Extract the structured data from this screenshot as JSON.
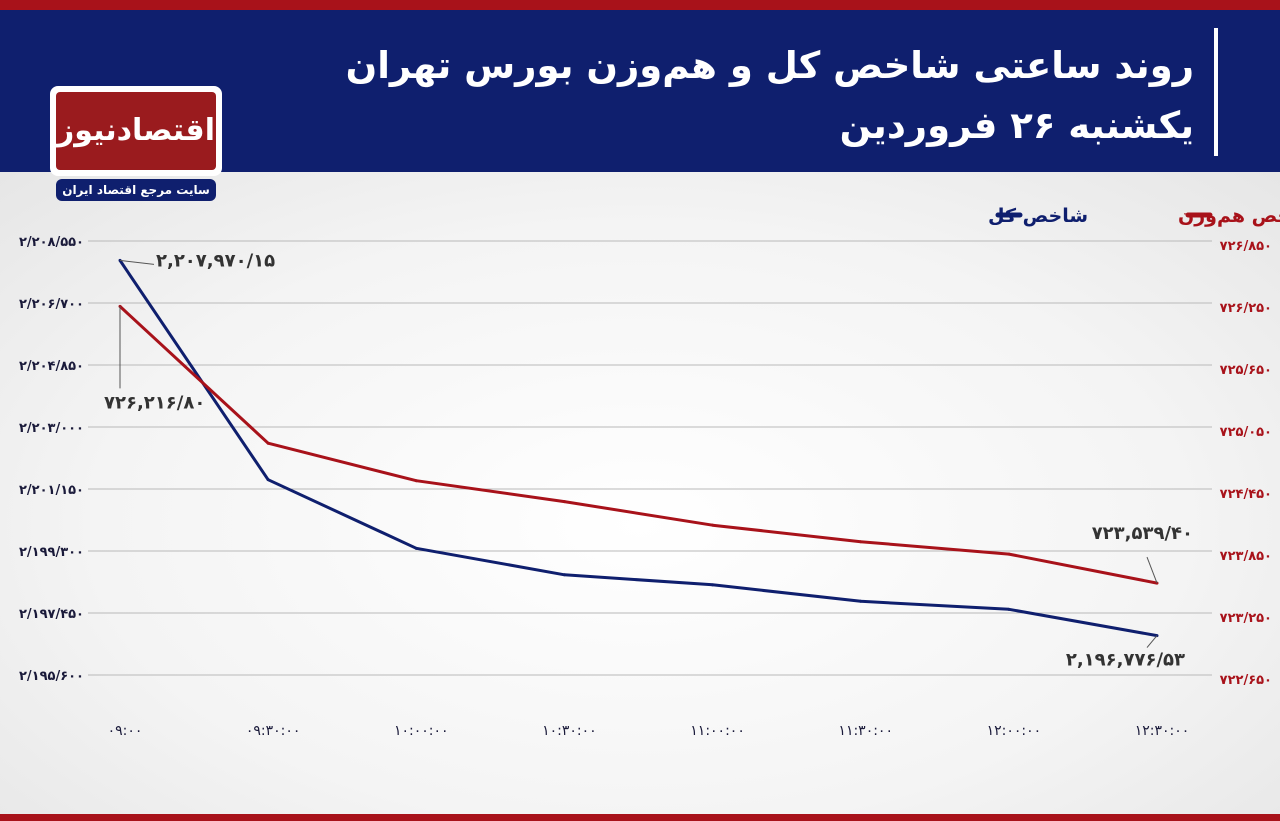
{
  "header": {
    "title": "روند ساعتی شاخص کل و هم‌وزن بورس تهران",
    "subtitle": "یکشنبه ۲۶ فروردین"
  },
  "logo": {
    "name": "اقتصادنیوز",
    "tagline": "سایت مرجع اقتصاد ایران"
  },
  "colors": {
    "header_bg": "#0f1f6e",
    "accent_red": "#a8121a",
    "total_series": "#0f1f6e",
    "equal_series": "#a8121a"
  },
  "chart_data": {
    "type": "line",
    "title": "روند ساعتی شاخص کل و هم‌وزن بورس تهران",
    "subtitle": "یکشنبه ۲۶ فروردین",
    "x": [
      "۰۹:۰۰",
      "۰۹:۳۰:۰۰",
      "۱۰:۰۰:۰۰",
      "۱۰:۳۰:۰۰",
      "۱۱:۰۰:۰۰",
      "۱۱:۳۰:۰۰",
      "۱۲:۰۰:۰۰",
      "۱۲:۳۰:۰۰"
    ],
    "series": [
      {
        "name": "شاخص کل",
        "axis": "left",
        "color": "#0f1f6e",
        "values": [
          2207970.15,
          2201428,
          2199380,
          2198590,
          2198290,
          2197800,
          2197560,
          2196776.53
        ]
      },
      {
        "name": "شاخص هم‌وزن",
        "axis": "right",
        "color": "#a8121a",
        "values": [
          726216.8,
          724893,
          724530,
          724328,
          724100,
          723940,
          723820,
          723539.4
        ]
      }
    ],
    "left_axis": {
      "ylim": [
        2195600,
        2208550
      ],
      "ticks": [
        2208550,
        2206700,
        2204850,
        2203000,
        2201150,
        2199300,
        2197450,
        2195600
      ],
      "tick_labels": [
        "۲/۲۰۸/۵۵۰",
        "۲/۲۰۶/۷۰۰",
        "۲/۲۰۴/۸۵۰",
        "۲/۲۰۳/۰۰۰",
        "۲/۲۰۱/۱۵۰",
        "۲/۱۹۹/۳۰۰",
        "۲/۱۹۷/۴۵۰",
        "۲/۱۹۵/۶۰۰"
      ]
    },
    "right_axis": {
      "ylim": [
        722650,
        726850
      ],
      "ticks": [
        726850,
        726250,
        725650,
        725050,
        724450,
        723850,
        723250,
        722650
      ],
      "tick_labels": [
        "۷۲۶/۸۵۰",
        "۷۲۶/۲۵۰",
        "۷۲۵/۶۵۰",
        "۷۲۵/۰۵۰",
        "۷۲۴/۴۵۰",
        "۷۲۳/۸۵۰",
        "۷۲۳/۲۵۰",
        "۷۲۲/۶۵۰"
      ]
    },
    "annotations": [
      {
        "series": "شاخص کل",
        "index": 0,
        "text": "۲,۲۰۷,۹۷۰/۱۵"
      },
      {
        "series": "شاخص هم‌وزن",
        "index": 0,
        "text": "۷۲۶,۲۱۶/۸۰"
      },
      {
        "series": "شاخص هم‌وزن",
        "index": 7,
        "text": "۷۲۳,۵۳۹/۴۰"
      },
      {
        "series": "شاخص کل",
        "index": 7,
        "text": "۲,۱۹۶,۷۷۶/۵۳"
      }
    ],
    "grid": "horizontal",
    "legend_position": "top-right"
  }
}
